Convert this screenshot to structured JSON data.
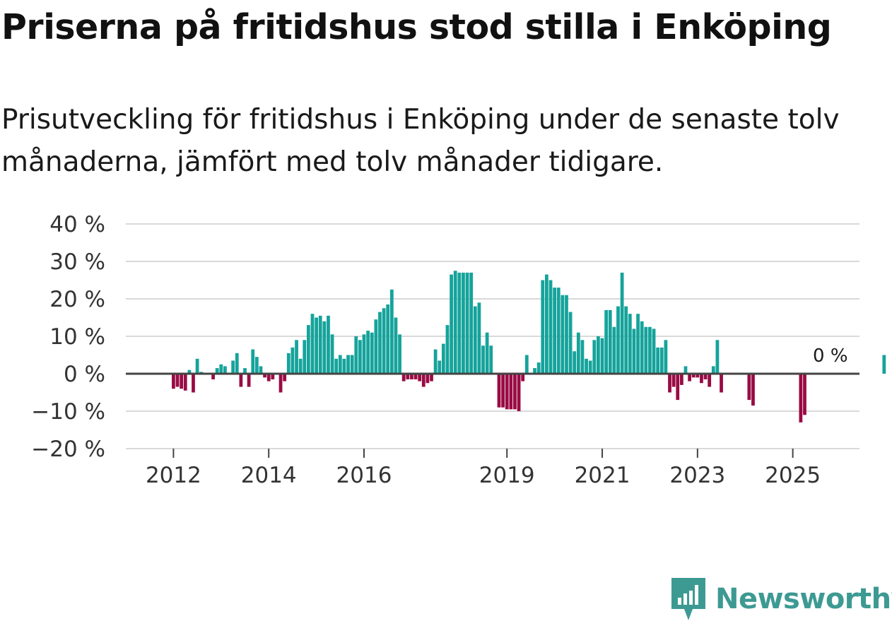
{
  "title": "Priserna på fritidshus stod stilla i Enköping",
  "subtitle": "Prisutveckling för fritidshus i Enköping under de senaste tolv månaderna, jämfört med tolv månader tidigare.",
  "brand": {
    "name": "Newsworthy",
    "color": "#3d9a93"
  },
  "colors": {
    "positive": "#15a39b",
    "negative": "#990b44",
    "grid": "#d9d9d9",
    "zero_line": "#444444",
    "text": "#333333"
  },
  "chart_data": {
    "type": "bar",
    "title": "Priserna på fritidshus stod stilla i Enköping",
    "ylabel": "",
    "xlabel": "",
    "ylim": [
      -20,
      40
    ],
    "yticks": [
      -20,
      -10,
      0,
      10,
      20,
      30,
      40
    ],
    "ytick_labels": [
      "−20 %",
      "−10 %",
      "0 %",
      "10 %",
      "20 %",
      "30 %",
      "40 %"
    ],
    "xlim": [
      2011,
      2026.4
    ],
    "xticks": [
      2012,
      2014,
      2016,
      2019,
      2021,
      2023,
      2025
    ],
    "xtick_labels": [
      "2012",
      "2014",
      "2016",
      "2019",
      "2021",
      "2023",
      "2025"
    ],
    "annotation": {
      "text": "0 %",
      "x": 2025.7,
      "y": 0
    },
    "series": [
      {
        "name": "Prisutveckling",
        "x_start": 2011.0,
        "x_step": 0.0833333,
        "values": [
          null,
          null,
          null,
          null,
          null,
          null,
          null,
          null,
          null,
          null,
          null,
          null,
          -4,
          -3.5,
          -4,
          -4.5,
          1,
          -5,
          4,
          0.5,
          null,
          null,
          -1.5,
          1.5,
          2.5,
          2,
          null,
          3.5,
          5.5,
          -3.5,
          1.5,
          -3.5,
          6.5,
          4.5,
          2,
          -1,
          -2,
          -1.5,
          null,
          -5,
          -2,
          5.5,
          7,
          9,
          4,
          9,
          13,
          16,
          15,
          15.5,
          14,
          15.5,
          10.5,
          4,
          5,
          4,
          5,
          5,
          10,
          9,
          10.5,
          11.5,
          11,
          14.5,
          16.5,
          17.5,
          18.5,
          22.5,
          15,
          10.5,
          -2,
          -1.5,
          -1.5,
          -1.5,
          -2,
          -3.5,
          -2.5,
          -2,
          6.5,
          3.5,
          8,
          13,
          26.5,
          27.5,
          27,
          27,
          27,
          27,
          18,
          19,
          7.5,
          11,
          7.5,
          null,
          -9,
          -9,
          -9.5,
          -9.5,
          -9.5,
          -10,
          -2,
          5,
          null,
          1.5,
          3,
          25,
          26.5,
          25,
          23,
          23,
          21,
          21,
          16.5,
          6,
          11,
          9,
          4,
          3.5,
          9,
          10,
          9.5,
          17,
          17,
          12.5,
          18,
          27,
          18,
          16,
          12,
          16,
          14,
          12.5,
          12.5,
          12,
          7,
          7,
          9,
          -5,
          -3.5,
          -7,
          -3,
          2,
          -2,
          -1,
          -1,
          -2.5,
          -1.5,
          -3.5,
          2,
          9,
          -5,
          null,
          null,
          null,
          null,
          null,
          null,
          -7,
          -8.5,
          null,
          null,
          null,
          null,
          null,
          null,
          null,
          null,
          null,
          null,
          null,
          -13,
          -11,
          null,
          null,
          null,
          null,
          null,
          null,
          null,
          null,
          null,
          null,
          null,
          null,
          null,
          null,
          null,
          null,
          null,
          null,
          null,
          5
        ]
      }
    ]
  }
}
